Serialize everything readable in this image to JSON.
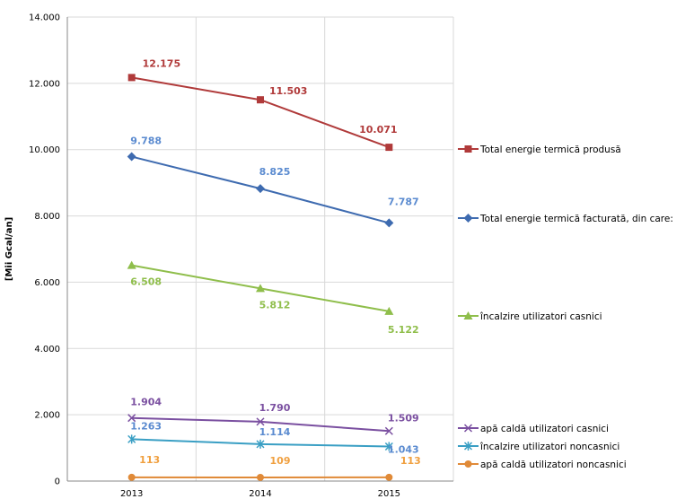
{
  "chart_data": {
    "type": "line",
    "title": "",
    "xlabel": "",
    "ylabel": "[Mii Gcal/an]",
    "categories": [
      "2013",
      "2014",
      "2015"
    ],
    "ylim": [
      0,
      14000
    ],
    "yticks": [
      "0",
      "2.000",
      "4.000",
      "6.000",
      "8.000",
      "10.000",
      "12.000",
      "14.000"
    ],
    "grid": true,
    "legend_position": "right",
    "series": [
      {
        "name": "Total energie termică produsă",
        "values": [
          12175,
          11503,
          10071
        ],
        "labels": [
          "12.175",
          "11.503",
          "10.071"
        ],
        "color": "#b03a3a",
        "marker": "square"
      },
      {
        "name": "Total energie termică facturată, din care:",
        "values": [
          9788,
          8825,
          7787
        ],
        "labels": [
          "9.788",
          "8.825",
          "7.787"
        ],
        "color": "#3e6bb0",
        "label_color": "#5b8bd0",
        "marker": "diamond"
      },
      {
        "name": "încalzire utilizatori casnici",
        "values": [
          6508,
          5812,
          5122
        ],
        "labels": [
          "6.508",
          "5.812",
          "5.122"
        ],
        "color": "#8fbe4b",
        "marker": "triangle"
      },
      {
        "name": "apă caldă utilizatori casnici",
        "values": [
          1904,
          1790,
          1509
        ],
        "labels": [
          "1.904",
          "1.790",
          "1.509"
        ],
        "color": "#7a4fa0",
        "marker": "x"
      },
      {
        "name": "încalzire utilizatori noncasnici",
        "values": [
          1263,
          1114,
          1043
        ],
        "labels": [
          "1.263",
          "1.114",
          "1.043"
        ],
        "color": "#3a9fc4",
        "label_color": "#5b8bd0",
        "marker": "star"
      },
      {
        "name": "apă caldă utilizatori noncasnici",
        "values": [
          113,
          109,
          113
        ],
        "labels": [
          "113",
          "109",
          "113"
        ],
        "color": "#e08a38",
        "label_color": "#f0a040",
        "marker": "circle"
      }
    ]
  }
}
